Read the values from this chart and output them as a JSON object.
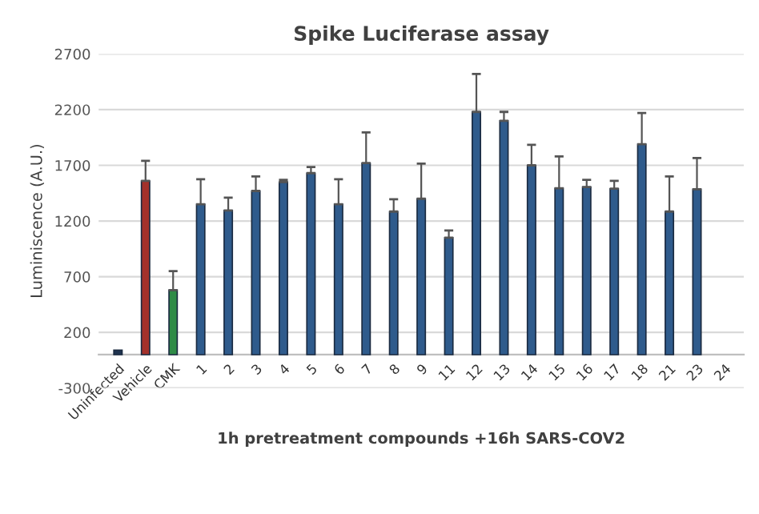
{
  "chart_data": {
    "type": "bar",
    "title": "Spike Luciferase assay",
    "xlabel": "1h pretreatment compounds +16h SARS-COV2",
    "ylabel": "Luminiscence (A.U.)",
    "categories": [
      "Uninfected",
      "Vehicle",
      "CMK",
      "1",
      "2",
      "3",
      "4",
      "5",
      "6",
      "7",
      "8",
      "9",
      "11",
      "12",
      "13",
      "14",
      "15",
      "16",
      "17",
      "18",
      "21",
      "23",
      "24"
    ],
    "values": [
      40,
      1560,
      580,
      1350,
      1295,
      1470,
      1550,
      1630,
      1350,
      1720,
      1285,
      1400,
      1050,
      2180,
      2100,
      1700,
      1495,
      1505,
      1490,
      1890,
      1285,
      1485,
      null
    ],
    "errors": [
      null,
      [
        1560,
        1740
      ],
      [
        580,
        750
      ],
      [
        1350,
        1575
      ],
      [
        1295,
        1410
      ],
      [
        1470,
        1600
      ],
      [
        1550,
        1570
      ],
      [
        1630,
        1685
      ],
      [
        1350,
        1575
      ],
      [
        1720,
        1995
      ],
      [
        1285,
        1395
      ],
      [
        1400,
        1715
      ],
      [
        1050,
        1115
      ],
      [
        2180,
        2520
      ],
      [
        2100,
        2180
      ],
      [
        1700,
        1885
      ],
      [
        1495,
        1780
      ],
      [
        1505,
        1570
      ],
      [
        1490,
        1560
      ],
      [
        1890,
        2170
      ],
      [
        1285,
        1600
      ],
      [
        1485,
        1765
      ],
      null
    ],
    "colors": [
      "#1f3350",
      "#a3312b",
      "#2e8b46",
      "#2f5b8c",
      "#2f5b8c",
      "#2f5b8c",
      "#2f5b8c",
      "#2f5b8c",
      "#2f5b8c",
      "#2f5b8c",
      "#2f5b8c",
      "#2f5b8c",
      "#2f5b8c",
      "#2f5b8c",
      "#2f5b8c",
      "#2f5b8c",
      "#2f5b8c",
      "#2f5b8c",
      "#2f5b8c",
      "#2f5b8c",
      "#2f5b8c",
      "#2f5b8c",
      "#2f5b8c"
    ],
    "ylim": [
      -300,
      2700
    ],
    "yticks": [
      -300,
      200,
      700,
      1200,
      1700,
      2200,
      2700
    ],
    "grid": "y"
  }
}
